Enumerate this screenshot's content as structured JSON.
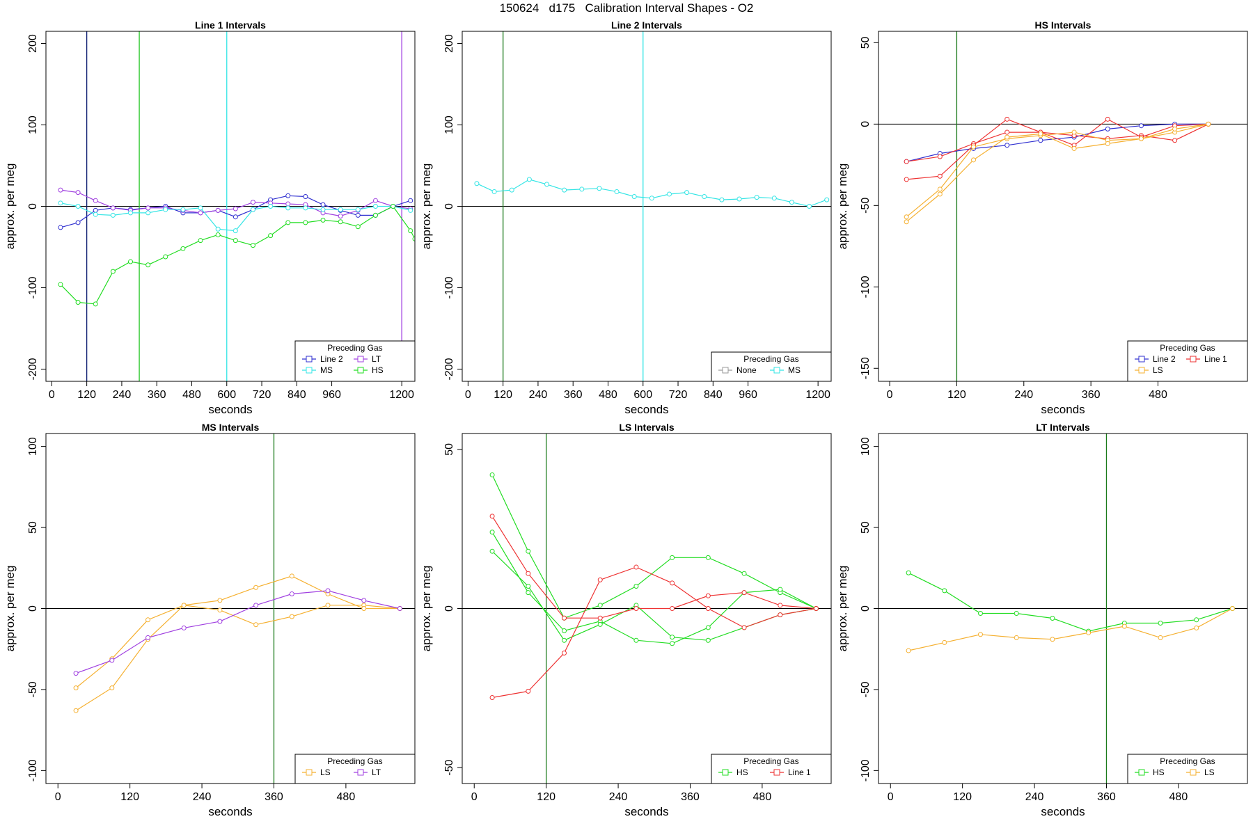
{
  "page": {
    "title": "150624   d175   Calibration Interval Shapes - O2"
  },
  "chart_data": [
    {
      "type": "line",
      "title": "Line 1 Intervals",
      "xlabel": "seconds",
      "ylabel": "approx. per meg",
      "xlim": [
        -20,
        1245
      ],
      "ylim": [
        -215,
        215
      ],
      "xticks": [
        0,
        120,
        240,
        360,
        480,
        600,
        720,
        840,
        960,
        1200
      ],
      "yticks": [
        -200,
        -100,
        0,
        100,
        200
      ],
      "hline": 0,
      "vlines": [
        {
          "x": 120,
          "color": "#0a1a70"
        },
        {
          "x": 300,
          "color": "#22c522"
        },
        {
          "x": 600,
          "color": "#33e5e5"
        },
        {
          "x": 1200,
          "color": "#a040e0"
        }
      ],
      "legend": {
        "title": "Preceding Gas",
        "position": "bottom-right",
        "columns": 2
      },
      "series": [
        {
          "name": "Line 2",
          "color": "#3030d0",
          "x": [
            30,
            90,
            150,
            210,
            270,
            330,
            390,
            450,
            510,
            570,
            630,
            690,
            750,
            810,
            870,
            930,
            990,
            1050,
            1110,
            1170,
            1230
          ],
          "y": [
            -26,
            -20,
            -5,
            -2,
            -4,
            -2,
            0,
            -8,
            -8,
            -5,
            -13,
            -4,
            8,
            13,
            12,
            2,
            -5,
            -11,
            -11,
            0,
            7
          ]
        },
        {
          "name": "LT",
          "color": "#a040e0",
          "x": [
            30,
            90,
            150,
            210,
            270,
            330,
            390,
            450,
            510,
            570,
            630,
            690,
            750,
            810,
            870,
            930,
            990,
            1050,
            1110,
            1170,
            1230
          ],
          "y": [
            20,
            17,
            7,
            -2,
            -5,
            -2,
            -2,
            -5,
            -8,
            -5,
            -3,
            5,
            4,
            3,
            2,
            -8,
            -12,
            -5,
            7,
            0,
            -3
          ]
        },
        {
          "name": "MS",
          "color": "#33e5e5",
          "x": [
            30,
            90,
            150,
            210,
            270,
            330,
            390,
            450,
            510,
            570,
            630,
            690,
            750,
            810,
            870,
            930,
            990,
            1050,
            1110,
            1170,
            1230
          ],
          "y": [
            4,
            0,
            -10,
            -11,
            -8,
            -8,
            -4,
            -4,
            -2,
            -28,
            -30,
            -4,
            0,
            -2,
            -2,
            -4,
            -4,
            -4,
            0,
            0,
            -5
          ]
        },
        {
          "name": "HS",
          "color": "#22dd22",
          "x": [
            30,
            90,
            150,
            210,
            270,
            330,
            390,
            450,
            510,
            570,
            630,
            690,
            750,
            810,
            870,
            930,
            990,
            1050,
            1110,
            1170,
            1230,
            1245
          ],
          "y": [
            -96,
            -118,
            -120,
            -80,
            -68,
            -72,
            -62,
            -52,
            -42,
            -35,
            -42,
            -48,
            -36,
            -20,
            -20,
            -17,
            -19,
            -25,
            -11,
            0,
            -30,
            -40
          ]
        }
      ]
    },
    {
      "type": "line",
      "title": "Line 2 Intervals",
      "xlabel": "seconds",
      "ylabel": "approx. per meg",
      "xlim": [
        -20,
        1245
      ],
      "ylim": [
        -215,
        215
      ],
      "xticks": [
        0,
        120,
        240,
        360,
        480,
        600,
        720,
        840,
        960,
        1200
      ],
      "yticks": [
        -200,
        -100,
        0,
        100,
        200
      ],
      "hline": 0,
      "vlines": [
        {
          "x": 120,
          "color": "#1a7a1a"
        },
        {
          "x": 600,
          "color": "#33e5e5"
        }
      ],
      "legend": {
        "title": "Preceding Gas",
        "position": "bottom-right",
        "columns": 2
      },
      "series": [
        {
          "name": "None",
          "color": "#999999",
          "x": [],
          "y": []
        },
        {
          "name": "MS",
          "color": "#33e5e5",
          "x": [
            30,
            90,
            150,
            210,
            270,
            330,
            390,
            450,
            510,
            570,
            630,
            690,
            750,
            810,
            870,
            930,
            990,
            1050,
            1110,
            1170,
            1230
          ],
          "y": [
            28,
            18,
            20,
            33,
            27,
            20,
            21,
            22,
            18,
            12,
            10,
            15,
            17,
            12,
            8,
            9,
            11,
            10,
            5,
            0,
            8
          ]
        }
      ]
    },
    {
      "type": "line",
      "title": "HS Intervals",
      "xlabel": "seconds",
      "ylabel": "approx. per meg",
      "xlim": [
        -20,
        640
      ],
      "ylim": [
        -158,
        57
      ],
      "xticks": [
        0,
        120,
        240,
        360,
        480
      ],
      "yticks": [
        -150,
        -100,
        -50,
        0,
        50
      ],
      "hline": 0,
      "vlines": [
        {
          "x": 120,
          "color": "#1a7a1a"
        }
      ],
      "legend": {
        "title": "Preceding Gas",
        "position": "bottom-right",
        "columns": 2
      },
      "series": [
        {
          "name": "Line 2",
          "color": "#3030d0",
          "x": [
            30,
            90,
            150,
            210,
            270,
            330,
            390,
            450,
            510,
            570
          ],
          "y": [
            -23,
            -18,
            -15,
            -13,
            -10,
            -8,
            -3,
            -1,
            0,
            0
          ]
        },
        {
          "name": "Line 1",
          "color": "#ee3333",
          "x": [
            30,
            90,
            150,
            210,
            270,
            330,
            390,
            450,
            510,
            570
          ],
          "y": [
            -23,
            -20,
            -12,
            -5,
            -5,
            -7,
            -9,
            -7,
            -10,
            0
          ]
        },
        {
          "name": "Line 1",
          "color": "#ee3333",
          "legend": false,
          "x": [
            30,
            90,
            150,
            210,
            270,
            330,
            390,
            450,
            510,
            570
          ],
          "y": [
            -34,
            -32,
            -13,
            3,
            -5,
            -13,
            3,
            -8,
            -1,
            0
          ]
        },
        {
          "name": "LS",
          "color": "#f5b030",
          "x": [
            30,
            90,
            150,
            210,
            270,
            330,
            390,
            450,
            510,
            570
          ],
          "y": [
            -57,
            -40,
            -14,
            -9,
            -7,
            -5,
            -10,
            -9,
            -5,
            0
          ]
        },
        {
          "name": "LS",
          "color": "#f5b030",
          "legend": false,
          "x": [
            30,
            90,
            150,
            210,
            270,
            330,
            390,
            450,
            510,
            570
          ],
          "y": [
            -60,
            -43,
            -22,
            -8,
            -6,
            -15,
            -12,
            -9,
            -3,
            0
          ]
        }
      ]
    },
    {
      "type": "line",
      "title": "MS Intervals",
      "xlabel": "seconds",
      "ylabel": "approx. per meg",
      "xlim": [
        -20,
        595
      ],
      "ylim": [
        -108,
        108
      ],
      "xticks": [
        0,
        120,
        240,
        360,
        480
      ],
      "yticks": [
        -100,
        -50,
        0,
        50,
        100
      ],
      "hline": 0,
      "vlines": [
        {
          "x": 360,
          "color": "#1a7a1a"
        }
      ],
      "legend": {
        "title": "Preceding Gas",
        "position": "bottom-right",
        "columns": 2
      },
      "series": [
        {
          "name": "LS",
          "color": "#f5b030",
          "x": [
            30,
            90,
            150,
            210,
            270,
            330,
            390,
            450,
            510,
            570
          ],
          "y": [
            -49,
            -31,
            -7,
            2,
            -1,
            -10,
            -5,
            2,
            2,
            0
          ]
        },
        {
          "name": "LS",
          "color": "#f5b030",
          "legend": false,
          "x": [
            30,
            90,
            150,
            210,
            270,
            330,
            390,
            450,
            510,
            570
          ],
          "y": [
            -63,
            -49,
            -19,
            2,
            5,
            13,
            20,
            9,
            0,
            0
          ]
        },
        {
          "name": "LT",
          "color": "#a040e0",
          "x": [
            30,
            90,
            150,
            210,
            270,
            330,
            390,
            450,
            510,
            570
          ],
          "y": [
            -40,
            -32,
            -18,
            -12,
            -8,
            2,
            9,
            11,
            5,
            0
          ]
        }
      ]
    },
    {
      "type": "line",
      "title": "LS Intervals",
      "xlabel": "seconds",
      "ylabel": "approx. per meg",
      "xlim": [
        -20,
        595
      ],
      "ylim": [
        -55,
        55
      ],
      "xticks": [
        0,
        120,
        240,
        360,
        480
      ],
      "yticks": [
        -50,
        0,
        50
      ],
      "hline": 0,
      "vlines": [
        {
          "x": 120,
          "color": "#1a7a1a"
        }
      ],
      "legend": {
        "title": "Preceding Gas",
        "position": "bottom-right",
        "columns": 2
      },
      "series": [
        {
          "name": "HS",
          "color": "#22dd22",
          "x": [
            30,
            90,
            150,
            210,
            270,
            330,
            390,
            450,
            510,
            570
          ],
          "y": [
            42,
            18,
            -3,
            1,
            7,
            16,
            16,
            11,
            5,
            0
          ]
        },
        {
          "name": "HS",
          "color": "#22dd22",
          "legend": false,
          "x": [
            30,
            90,
            150,
            210,
            270,
            330,
            390,
            450,
            510,
            570
          ],
          "y": [
            24,
            5,
            -7,
            -4,
            -10,
            -11,
            -6,
            5,
            6,
            0
          ]
        },
        {
          "name": "HS",
          "color": "#22dd22",
          "legend": false,
          "x": [
            30,
            90,
            150,
            210,
            270,
            330,
            390,
            450,
            510,
            570
          ],
          "y": [
            18,
            7,
            -10,
            -5,
            1,
            -9,
            -10,
            -6,
            -2,
            0
          ]
        },
        {
          "name": "Line 1",
          "color": "#ee3333",
          "x": [
            30,
            90,
            150,
            210,
            270,
            330,
            390,
            450,
            510,
            570
          ],
          "y": [
            29,
            11,
            -3,
            -3,
            0,
            0,
            4,
            5,
            1,
            0
          ]
        },
        {
          "name": "Line 1",
          "color": "#ee3333",
          "legend": false,
          "x": [
            30,
            90,
            150,
            210,
            270,
            330,
            390,
            450,
            510,
            570
          ],
          "y": [
            -28,
            -26,
            -14,
            9,
            13,
            8,
            0,
            -6,
            -2,
            0
          ]
        }
      ]
    },
    {
      "type": "line",
      "title": "LT Intervals",
      "xlabel": "seconds",
      "ylabel": "approx. per meg",
      "xlim": [
        -20,
        595
      ],
      "ylim": [
        -108,
        108
      ],
      "xticks": [
        0,
        120,
        240,
        360,
        480
      ],
      "yticks": [
        -100,
        -50,
        0,
        50,
        100
      ],
      "hline": 0,
      "vlines": [
        {
          "x": 360,
          "color": "#1a7a1a"
        }
      ],
      "legend": {
        "title": "Preceding Gas",
        "position": "bottom-right",
        "columns": 2
      },
      "series": [
        {
          "name": "HS",
          "color": "#22dd22",
          "x": [
            30,
            90,
            150,
            210,
            270,
            330,
            390,
            450,
            510,
            570
          ],
          "y": [
            22,
            11,
            -3,
            -3,
            -6,
            -14,
            -9,
            -9,
            -7,
            0
          ]
        },
        {
          "name": "LS",
          "color": "#f5b030",
          "x": [
            30,
            90,
            150,
            210,
            270,
            330,
            390,
            450,
            510,
            570
          ],
          "y": [
            -26,
            -21,
            -16,
            -18,
            -19,
            -15,
            -11,
            -18,
            -12,
            0
          ]
        }
      ]
    }
  ]
}
